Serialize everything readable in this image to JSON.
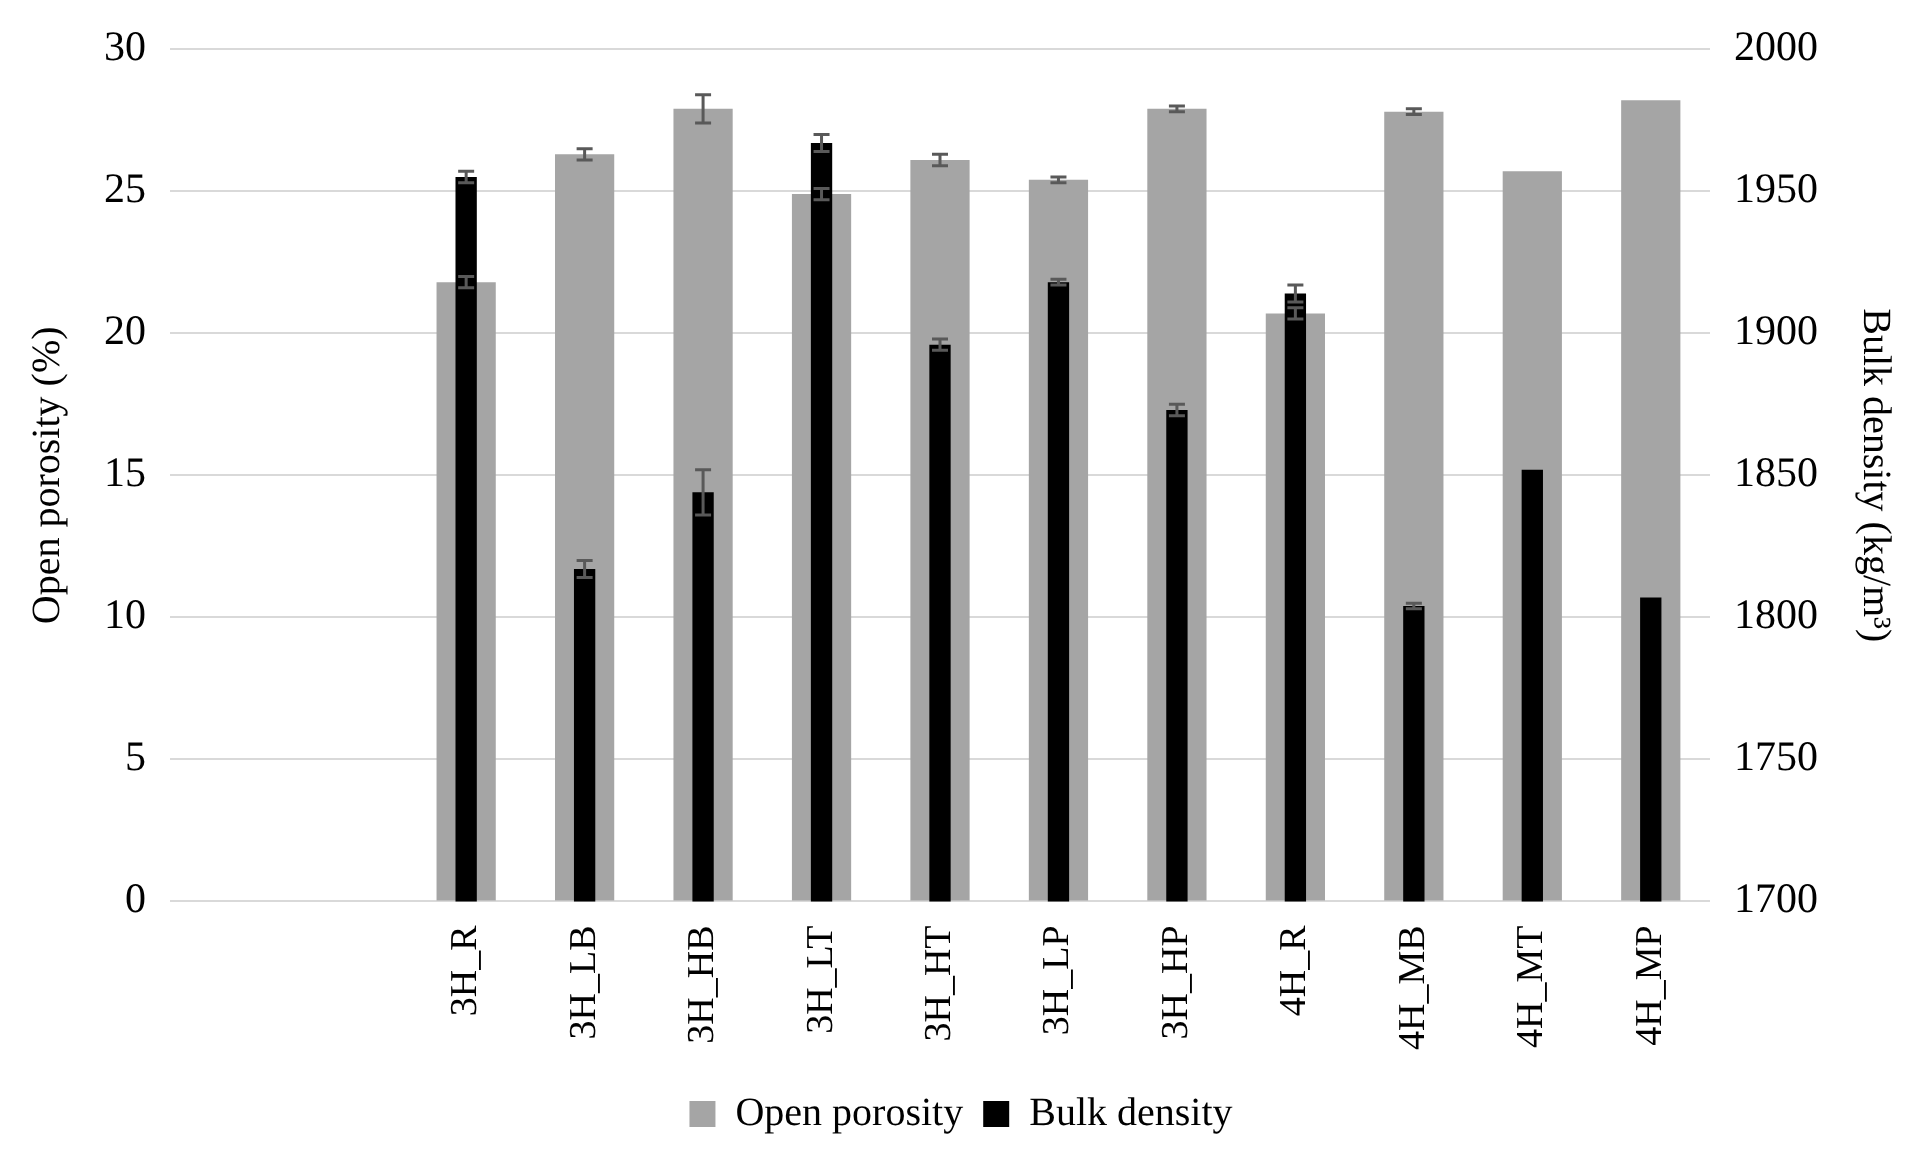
{
  "chart_data": {
    "type": "bar",
    "ylabel": "Open porosity (%)",
    "y2label": "Bulk density (kg/m³)",
    "categories": [
      null,
      null,
      "3H_R",
      "3H_LB",
      "3H_HB",
      "3H_LT",
      "3H_HT",
      "3H_LP",
      "3H_HP",
      "4H_R",
      "4H_MB",
      "4H_MT",
      "4H_MP"
    ],
    "series": [
      {
        "name": "Open porosity",
        "color": "#a5a5a5",
        "values": [
          null,
          null,
          21.8,
          26.3,
          27.9,
          24.9,
          26.1,
          25.4,
          27.9,
          20.7,
          27.8,
          25.7,
          28.2
        ],
        "errors": [
          null,
          null,
          0.2,
          0.2,
          0.5,
          0.2,
          0.2,
          0.1,
          0.1,
          0.2,
          0.1,
          null,
          null
        ]
      },
      {
        "name": "Bulk density",
        "color": "#000000",
        "axis": "y2",
        "values": [
          null,
          null,
          1955,
          1817,
          1844,
          1967,
          1896,
          1918,
          1873,
          1914,
          1804,
          1852,
          1807
        ],
        "errors": [
          null,
          null,
          2,
          3,
          8,
          3,
          2,
          1,
          2,
          3,
          1,
          null,
          null
        ]
      }
    ],
    "ylim": [
      0,
      30
    ],
    "yticks": [
      0,
      5,
      10,
      15,
      20,
      25,
      30
    ],
    "y2lim": [
      1700,
      2000
    ],
    "y2ticks": [
      1700,
      1750,
      1800,
      1850,
      1900,
      1950,
      2000
    ],
    "grid": "y",
    "legend": "bottom"
  }
}
